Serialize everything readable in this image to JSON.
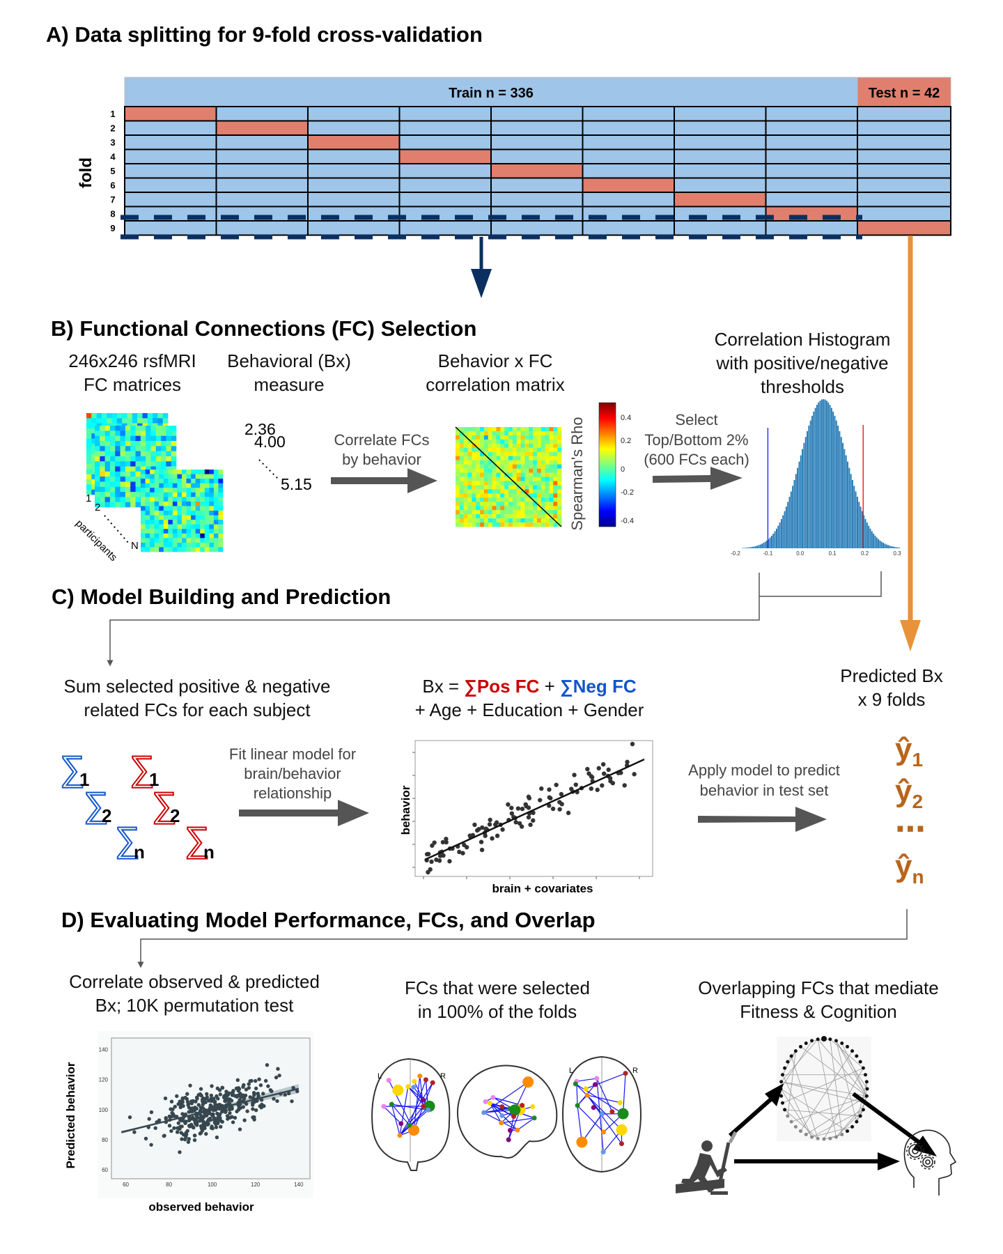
{
  "panel_a": {
    "title": "A) Data splitting for 9-fold cross-validation",
    "train_label": "Train n = 336",
    "test_label": "Test n = 42",
    "y_label": "fold",
    "fold_numbers": [
      "1",
      "2",
      "3",
      "4",
      "5",
      "6",
      "7",
      "8",
      "9"
    ],
    "colors": {
      "train": "#9fc5e8",
      "test": "#e07f6d",
      "dash": "#0b3060",
      "arrow_train": "#0b3060",
      "arrow_test": "#e8923a"
    }
  },
  "panel_b": {
    "title": "B) Functional Connections (FC) Selection",
    "col1": [
      "246x246 rsfMRI",
      "FC matrices"
    ],
    "col2": [
      "Behavioral (Bx)",
      "measure"
    ],
    "col3": [
      "Behavior x FC",
      "correlation matrix"
    ],
    "col4": [
      "Correlation Histogram",
      "with positive/negative",
      "thresholds"
    ],
    "participant_labels": {
      "first": "1",
      "second": "2",
      "last": "N",
      "axis": "participants"
    },
    "bx_values": [
      "2.36",
      "4.00",
      "5.15"
    ],
    "arrow1_label": [
      "Correlate FCs",
      "by behavior"
    ],
    "colorbar_label": "Spearman's Rho",
    "colorbar_ticks": [
      "0.4",
      "0.2",
      "0",
      "-0.2",
      "-0.4"
    ],
    "arrow2_label": [
      "Select",
      "Top/Bottom 2%",
      "(600 FCs each)"
    ],
    "histogram_ticks": [
      "-0.2",
      "-0.1",
      "0.0",
      "0.1",
      "0.2",
      "0.3"
    ],
    "thresholds": {
      "negative": -0.1,
      "positive": 0.195,
      "neg_color": "#3333ff",
      "pos_color": "#ff2222"
    }
  },
  "panel_c": {
    "title": "C) Model Building and Prediction",
    "sum_label": [
      "Sum selected positive & negative",
      "related FCs for each subject"
    ],
    "formula": {
      "lhs": "Bx = ",
      "pos": "∑Pos FC",
      "plus": " +  ",
      "neg": "∑Neg FC",
      "line2": "+ Age + Education + Gender",
      "pos_color": "#cc0000",
      "neg_color": "#1155cc"
    },
    "sigma": "∑",
    "sigma_subs": [
      "1",
      "2",
      "n"
    ],
    "arrow1_label": [
      "Fit linear model for",
      "brain/behavior",
      "relationship"
    ],
    "plot_ylabel": "behavior",
    "plot_xlabel": "brain + covariates",
    "arrow2_label": [
      "Apply model to predict",
      "behavior in test set"
    ],
    "predicted_label": [
      "Predicted Bx",
      "x 9 folds"
    ],
    "yhat": "ŷ",
    "yhat_subs": [
      "1",
      "2",
      "n"
    ],
    "ellipsis": "⋯",
    "yhat_color": "#b8651b"
  },
  "panel_d": {
    "title": "D) Evaluating Model Performance, FCs, and Overlap",
    "col1": [
      "Correlate observed & predicted",
      "Bx; 10K permutation test"
    ],
    "col2": [
      "FCs that were selected",
      "in 100% of the folds"
    ],
    "col3": [
      "Overlapping FCs that mediate",
      "Fitness & Cognition"
    ],
    "scatter": {
      "xlabel": "observed behavior",
      "ylabel": "Predicted behavior",
      "x_ticks": [
        "60",
        "80",
        "100",
        "120",
        "140"
      ],
      "y_ticks": [
        "60",
        "80",
        "100",
        "120",
        "140"
      ]
    },
    "brain_labels": {
      "left": "L",
      "right": "R"
    }
  }
}
